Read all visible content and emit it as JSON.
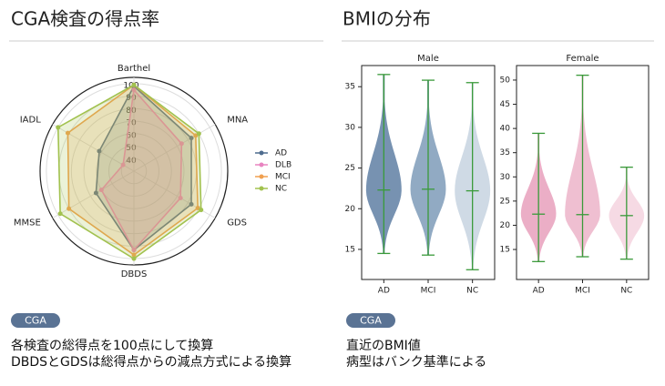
{
  "left": {
    "heading": "CGA検査の得点率",
    "badge": "CGA",
    "notes": [
      "各検査の総得点を100点にして換算",
      "DBDSとGDSは総得点からの減点方式による換算"
    ]
  },
  "right": {
    "heading": "BMIの分布",
    "badge": "CGA",
    "notes": [
      "直近のBMI値",
      "病型はバンク基準による"
    ]
  },
  "chart_data": [
    {
      "type": "radar",
      "categories": [
        "Barthel",
        "MNA",
        "GDS",
        "DBDS",
        "MMSE",
        "IADL"
      ],
      "rlim": [
        30,
        105
      ],
      "rticks": [
        40,
        50,
        60,
        70,
        80,
        90,
        100
      ],
      "grid": true,
      "series": [
        {
          "name": "AD",
          "color": "#4e6c8e",
          "values": [
            98,
            83,
            83,
            93,
            65,
            62
          ]
        },
        {
          "name": "DLB",
          "color": "#e884c0",
          "values": [
            95,
            74,
            73,
            93,
            60,
            40
          ]
        },
        {
          "name": "MCI",
          "color": "#f0a050",
          "values": [
            99,
            87,
            89,
            97,
            90,
            91
          ]
        },
        {
          "name": "NC",
          "color": "#a2c24f",
          "values": [
            99,
            90,
            92,
            100,
            98,
            100
          ]
        }
      ]
    },
    {
      "type": "violin",
      "title": "Male",
      "categories": [
        "AD",
        "MCI",
        "NC"
      ],
      "colors": [
        "#5f7fa3",
        "#7e9bb8",
        "#c7d3e0"
      ],
      "line_color": "#3a9a3a",
      "ylim": [
        11.3,
        37.6
      ],
      "yticks": [
        15,
        20,
        25,
        30,
        35
      ],
      "min": [
        14.5,
        14.3,
        12.5
      ],
      "median": [
        22.3,
        22.4,
        22.2
      ],
      "max": [
        36.5,
        35.8,
        35.5
      ]
    },
    {
      "type": "violin",
      "title": "Female",
      "categories": [
        "AD",
        "MCI",
        "NC"
      ],
      "colors": [
        "#e8a0bc",
        "#ecb4c9",
        "#f4d3df"
      ],
      "line_color": "#3a9a3a",
      "ylim": [
        8.8,
        53
      ],
      "yticks": [
        15,
        20,
        25,
        30,
        35,
        40,
        45,
        50
      ],
      "min": [
        12.5,
        13.5,
        13
      ],
      "median": [
        22.3,
        22.2,
        22
      ],
      "max": [
        39,
        51,
        32
      ]
    }
  ]
}
